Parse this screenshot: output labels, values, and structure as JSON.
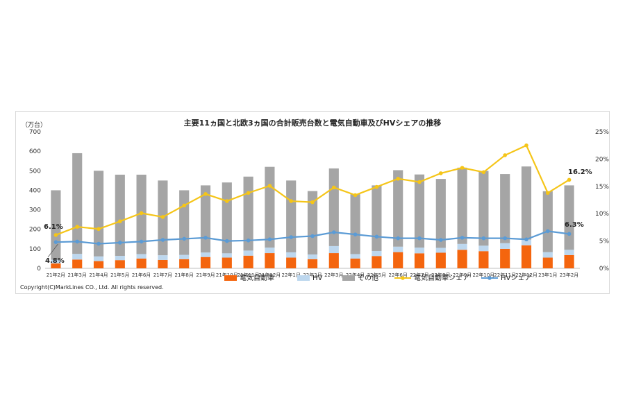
{
  "chart_data": {
    "type": "bar",
    "title": "主要11ヵ国と北欧3ヵ国の合計販売台数と電気自動車及びHVシェアの推移",
    "y_unit": "（万台）",
    "ylim": [
      0,
      700
    ],
    "y_ticks": [
      0,
      100,
      200,
      300,
      400,
      500,
      600,
      700
    ],
    "y2_ticks": [
      "0%",
      "5%",
      "10%",
      "15%",
      "20%",
      "25%"
    ],
    "y2lim": [
      0,
      25
    ],
    "grid": false,
    "legend_position": "bottom",
    "categories": [
      "21年2月",
      "21年3月",
      "21年4月",
      "21年5月",
      "21年6月",
      "21年7月",
      "21年8月",
      "21年9月",
      "21年10月",
      "21年11月",
      "21年12月",
      "22年1月",
      "22年2月",
      "22年3月",
      "22年4月",
      "22年5月",
      "22年6月",
      "22年7月",
      "22年8月",
      "22年9月",
      "22年10月",
      "22年11月",
      "22年12月",
      "23年1月",
      "23年2月"
    ],
    "series": [
      {
        "name": "電気自動車",
        "kind": "bar",
        "color": "#F4650E",
        "values": [
          25,
          45,
          37,
          42,
          50,
          43,
          47,
          58,
          55,
          65,
          78,
          55,
          47,
          78,
          50,
          63,
          83,
          77,
          80,
          95,
          88,
          100,
          118,
          55,
          68
        ]
      },
      {
        "name": "HV",
        "kind": "bar",
        "color": "#BDD7EE",
        "values": [
          19,
          29,
          24,
          22,
          23,
          24,
          22,
          23,
          22,
          26,
          28,
          27,
          24,
          36,
          23,
          26,
          28,
          29,
          25,
          30,
          28,
          29,
          29,
          28,
          27
        ]
      },
      {
        "name": "その他",
        "kind": "bar",
        "color": "#A5A5A5",
        "values": [
          356,
          516,
          439,
          416,
          407,
          383,
          331,
          344,
          363,
          379,
          414,
          368,
          325,
          398,
          307,
          336,
          392,
          375,
          353,
          391,
          383,
          354,
          375,
          312,
          330
        ]
      },
      {
        "name": "電気自動車シェア",
        "kind": "line",
        "axis": "right",
        "color": "#F5C518",
        "values": [
          6.1,
          7.6,
          7.2,
          8.6,
          10.1,
          9.4,
          11.5,
          13.6,
          12.3,
          13.8,
          15.1,
          12.3,
          12.1,
          14.8,
          13.4,
          14.9,
          16.4,
          15.8,
          17.4,
          18.4,
          17.6,
          20.7,
          22.5,
          13.8,
          16.2
        ]
      },
      {
        "name": "HVシェア",
        "kind": "line",
        "axis": "right",
        "color": "#5B9BD5",
        "values": [
          4.8,
          4.9,
          4.5,
          4.7,
          4.9,
          5.2,
          5.4,
          5.6,
          5.0,
          5.1,
          5.3,
          5.7,
          5.9,
          6.6,
          6.2,
          5.8,
          5.5,
          5.5,
          5.2,
          5.6,
          5.5,
          5.5,
          5.3,
          6.8,
          6.3
        ]
      }
    ],
    "annotations": [
      "6.1%",
      "4.8%",
      "16.2%",
      "6.3%"
    ]
  },
  "copyright": "Copyright(C)MarkLines CO., Ltd. All rights reserved."
}
